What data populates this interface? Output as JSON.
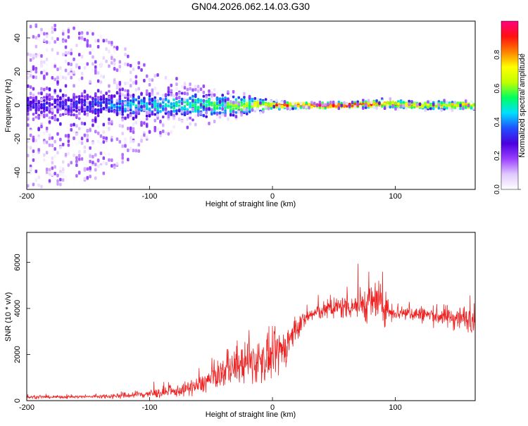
{
  "title": "GN04.2026.062.14.03.G30",
  "chart_data": [
    {
      "type": "heatmap",
      "title": "GN04.2026.062.14.03.G30",
      "xlabel": "Height of straight line (km)",
      "ylabel": "Frequency (Hz)",
      "xlim": [
        -200,
        165
      ],
      "ylim": [
        -50,
        50
      ],
      "x_ticks": [
        -200,
        -100,
        0,
        100
      ],
      "y_ticks": [
        -40,
        -20,
        0,
        20,
        40
      ],
      "grid": false,
      "colorbar": {
        "label": "Normalized spectral amplitude",
        "range": [
          0,
          1
        ],
        "ticks": [
          "0.0",
          "0.2",
          "0.4",
          "0.6",
          "0.8"
        ],
        "colors": [
          "#ffffff",
          "#e0c8ff",
          "#9a40ff",
          "#4a00e0",
          "#2050ff",
          "#00e0ff",
          "#00ff60",
          "#c0ff00",
          "#ffff00",
          "#ff8000",
          "#ff1010",
          "#ff0080"
        ]
      },
      "ridge": {
        "x": [
          -200,
          -150,
          -120,
          -100,
          -60,
          -30,
          0,
          30,
          60,
          90,
          120,
          165
        ],
        "freq_center": [
          0,
          0,
          0,
          0,
          0,
          0,
          0,
          0,
          0,
          1,
          0,
          0
        ],
        "peak_amplitude": [
          0.3,
          0.35,
          0.45,
          0.5,
          0.55,
          0.6,
          0.85,
          0.95,
          0.9,
          0.85,
          0.75,
          0.8
        ],
        "scatter_halfwidth_hz": [
          50,
          45,
          35,
          20,
          12,
          8,
          3,
          2,
          2,
          3,
          3,
          3
        ]
      }
    },
    {
      "type": "line",
      "xlabel": "Height of straight line (km)",
      "ylabel": "SNR (10 * v/v)",
      "xlim": [
        -200,
        165
      ],
      "ylim": [
        0,
        7300
      ],
      "x_ticks": [
        -200,
        -100,
        0,
        100
      ],
      "y_ticks": [
        0,
        2000,
        4000,
        6000
      ],
      "grid": false,
      "line_color": "#ee2222",
      "envelope": {
        "x": [
          -200,
          -150,
          -120,
          -100,
          -80,
          -60,
          -45,
          -30,
          -15,
          0,
          10,
          20,
          30,
          40,
          60,
          75,
          85,
          95,
          110,
          130,
          150,
          165
        ],
        "mean": [
          150,
          170,
          220,
          300,
          380,
          650,
          1100,
          1500,
          1700,
          1900,
          2300,
          3200,
          3700,
          3900,
          4100,
          4200,
          4300,
          3900,
          3800,
          3700,
          3600,
          3550
        ],
        "spread": [
          60,
          60,
          120,
          180,
          200,
          350,
          500,
          700,
          900,
          900,
          800,
          450,
          300,
          350,
          500,
          700,
          900,
          450,
          300,
          350,
          500,
          500
        ]
      }
    }
  ]
}
